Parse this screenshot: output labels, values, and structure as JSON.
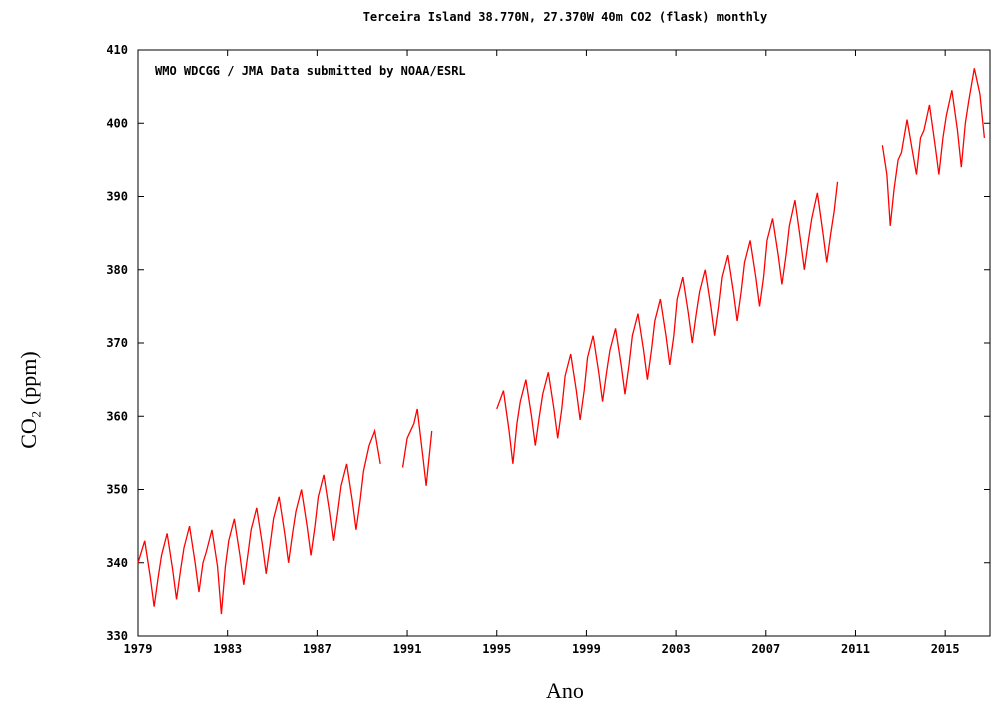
{
  "chart_data": {
    "type": "line",
    "title": "Terceira Island 38.770N, 27.370W 40m     CO2 (flask)  monthly",
    "annotation": "WMO WDCGG / JMA    Data submitted by NOAA/ESRL",
    "xlabel": "Ano",
    "ylabel": "CO₂ (ppm)",
    "xlim": [
      1979,
      2017
    ],
    "ylim": [
      330,
      410
    ],
    "xticks": [
      1979,
      1983,
      1987,
      1991,
      1995,
      1999,
      2003,
      2007,
      2011,
      2015
    ],
    "yticks": [
      330,
      340,
      350,
      360,
      370,
      380,
      390,
      400,
      410
    ],
    "x": [
      1979.0,
      1979.3,
      1979.55,
      1979.72,
      1979.9,
      1980.05,
      1980.3,
      1980.55,
      1980.72,
      1980.9,
      1981.05,
      1981.3,
      1981.55,
      1981.72,
      1981.9,
      1982.05,
      1982.3,
      1982.55,
      1982.72,
      1982.9,
      1983.05,
      1983.3,
      1983.55,
      1983.72,
      1983.9,
      1984.05,
      1984.3,
      1984.55,
      1984.72,
      1984.9,
      1985.05,
      1985.3,
      1985.55,
      1985.72,
      1985.9,
      1986.05,
      1986.3,
      1986.55,
      1986.72,
      1986.9,
      1987.05,
      1987.3,
      1987.55,
      1987.72,
      1987.9,
      1988.05,
      1988.3,
      1988.55,
      1988.72,
      1988.9,
      1989.05,
      1989.3,
      1989.55,
      1989.8,
      1990.3,
      1990.8,
      1991.0,
      1991.3,
      1991.45,
      1991.72,
      1991.85,
      1992.0,
      1992.1,
      1993.5,
      1995.0,
      1995.3,
      1995.55,
      1995.72,
      1995.9,
      1996.05,
      1996.3,
      1996.55,
      1996.72,
      1996.9,
      1997.05,
      1997.3,
      1997.55,
      1997.72,
      1997.9,
      1998.05,
      1998.3,
      1998.55,
      1998.72,
      1998.9,
      1999.05,
      1999.3,
      1999.55,
      1999.72,
      1999.9,
      2000.05,
      2000.3,
      2000.55,
      2000.72,
      2000.9,
      2001.05,
      2001.3,
      2001.55,
      2001.72,
      2001.9,
      2002.05,
      2002.3,
      2002.55,
      2002.72,
      2002.9,
      2003.05,
      2003.3,
      2003.55,
      2003.72,
      2003.9,
      2004.05,
      2004.3,
      2004.55,
      2004.72,
      2004.9,
      2005.05,
      2005.3,
      2005.55,
      2005.72,
      2005.9,
      2006.05,
      2006.3,
      2006.55,
      2006.72,
      2006.9,
      2007.05,
      2007.3,
      2007.55,
      2007.72,
      2007.9,
      2008.05,
      2008.3,
      2008.55,
      2008.72,
      2008.9,
      2009.05,
      2009.3,
      2009.55,
      2009.72,
      2009.9,
      2010.05,
      2010.2,
      2011.2,
      2012.2,
      2012.4,
      2012.55,
      2012.72,
      2012.9,
      2013.05,
      2013.3,
      2013.55,
      2013.72,
      2013.9,
      2014.05,
      2014.3,
      2014.55,
      2014.72,
      2014.9,
      2015.05,
      2015.3,
      2015.55,
      2015.72,
      2015.9,
      2016.05,
      2016.3,
      2016.55,
      2016.75
    ],
    "series": [
      {
        "name": "CO2",
        "color": "#ff0000",
        "values": [
          340,
          343,
          338,
          334,
          338,
          341,
          344,
          339,
          335,
          339,
          342,
          345,
          340,
          336,
          340,
          341.5,
          344.5,
          339.5,
          333,
          339.5,
          343,
          346,
          341,
          337,
          341,
          344.5,
          347.5,
          342.5,
          338.5,
          342.5,
          346,
          349,
          344,
          340,
          344,
          347,
          350,
          345,
          341,
          345,
          349,
          352,
          347,
          343,
          347,
          350.5,
          353.5,
          348.5,
          344.5,
          348.5,
          352.5,
          356,
          358,
          353.5,
          null,
          353,
          357,
          359,
          361,
          354,
          350.5,
          355,
          358,
          null,
          361,
          363.5,
          358,
          353.5,
          359,
          362,
          365,
          360,
          356,
          360,
          363,
          366,
          361,
          357,
          361,
          365.5,
          368.5,
          363.5,
          359.5,
          363.5,
          368,
          371,
          366,
          362,
          366,
          369,
          372,
          367,
          363,
          367,
          371,
          374,
          369,
          365,
          369,
          373,
          376,
          371,
          367,
          371,
          376,
          379,
          374,
          370,
          374,
          377,
          380,
          375,
          371,
          375,
          379,
          382,
          377,
          373,
          377,
          381,
          384,
          379,
          375,
          379,
          384,
          387,
          382,
          378,
          382,
          386,
          389.5,
          384,
          380,
          384,
          387,
          390.5,
          385,
          381,
          385,
          388,
          392,
          null,
          397,
          393,
          386,
          391,
          395,
          396,
          400.5,
          396,
          393,
          398,
          399,
          402.5,
          397,
          393,
          398,
          401,
          404.5,
          399,
          394,
          400,
          403,
          407.5,
          404,
          398
        ]
      }
    ]
  }
}
